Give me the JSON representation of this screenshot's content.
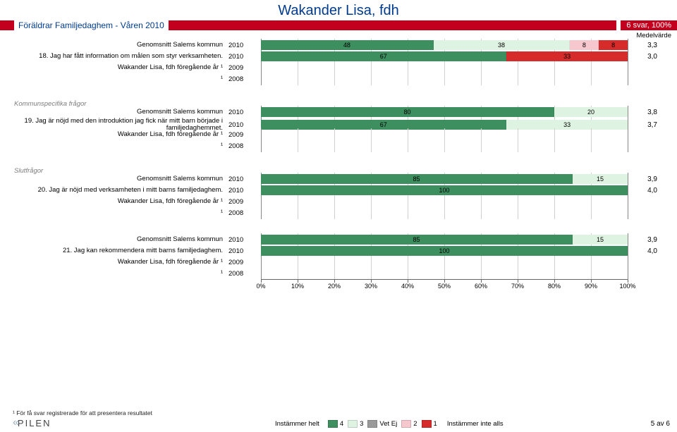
{
  "title": "Wakander Lisa, fdh",
  "header": {
    "left_label": "Föräldrar Familjedaghem - Våren 2010",
    "right_label": "6 svar, 100%",
    "medel_label": "Medelvärde"
  },
  "colors": {
    "c4": "#3e8f5f",
    "c3": "#dff3e2",
    "cVetEj": "#9a9a9a",
    "c2": "#f6c7cd",
    "c1": "#d52b2b",
    "grid": "#d0d0d0",
    "title_color": "#003b8e",
    "band_color": "#c3001e"
  },
  "groups": [
    {
      "section": null,
      "question": "18. Jag har fått information om målen som styr verksamheten.",
      "rows": [
        {
          "label": "Genomsnitt Salems kommun",
          "year": "2010",
          "segments": [
            {
              "v": 48,
              "k": "c4"
            },
            {
              "v": 38,
              "k": "c3"
            },
            {
              "v": 8,
              "k": "c2",
              "hide": false
            },
            {
              "v": 8,
              "k": "c1",
              "hide": false
            }
          ],
          "mv": "3,3"
        },
        {
          "label": "__Q__",
          "year": "2010",
          "segments": [
            {
              "v": 67,
              "k": "c4"
            },
            {
              "v": 33,
              "k": "c1"
            }
          ],
          "mv": "3,0"
        },
        {
          "label": "Wakander Lisa, fdh föregående år ¹",
          "year": "2009",
          "empty": true
        },
        {
          "label": "¹",
          "year": "2008",
          "empty": true
        }
      ]
    },
    {
      "section": "Kommunspecifika frågor",
      "question": "19. Jag är nöjd med den introduktion jag fick när mitt barn började i familjedaghemmet.",
      "rows": [
        {
          "label": "Genomsnitt Salems kommun",
          "year": "2010",
          "segments": [
            {
              "v": 80,
              "k": "c4"
            },
            {
              "v": 20,
              "k": "c3"
            }
          ],
          "mv": "3,8"
        },
        {
          "label": "__Q__",
          "year": "2010",
          "segments": [
            {
              "v": 67,
              "k": "c4"
            },
            {
              "v": 33,
              "k": "c3"
            }
          ],
          "mv": "3,7"
        },
        {
          "label": "Wakander Lisa, fdh föregående år ¹",
          "year": "2009",
          "empty": true
        },
        {
          "label": "¹",
          "year": "2008",
          "empty": true
        }
      ]
    },
    {
      "section": "Slutfrågor",
      "question": "20. Jag är nöjd med verksamheten i mitt barns familjedaghem.",
      "rows": [
        {
          "label": "Genomsnitt Salems kommun",
          "year": "2010",
          "segments": [
            {
              "v": 85,
              "k": "c4"
            },
            {
              "v": 15,
              "k": "c3"
            }
          ],
          "mv": "3,9"
        },
        {
          "label": "__Q__",
          "year": "2010",
          "segments": [
            {
              "v": 100,
              "k": "c4"
            }
          ],
          "mv": "4,0"
        },
        {
          "label": "Wakander Lisa, fdh föregående år ¹",
          "year": "2009",
          "empty": true
        },
        {
          "label": "¹",
          "year": "2008",
          "empty": true
        }
      ]
    },
    {
      "section": null,
      "question": "21. Jag kan rekommendera mitt barns familjedaghem.",
      "rows": [
        {
          "label": "Genomsnitt Salems kommun",
          "year": "2010",
          "segments": [
            {
              "v": 85,
              "k": "c4"
            },
            {
              "v": 15,
              "k": "c3"
            }
          ],
          "mv": "3,9"
        },
        {
          "label": "__Q__",
          "year": "2010",
          "segments": [
            {
              "v": 100,
              "k": "c4"
            }
          ],
          "mv": "4,0"
        },
        {
          "label": "Wakander Lisa, fdh föregående år ¹",
          "year": "2009",
          "empty": true
        },
        {
          "label": "¹",
          "year": "2008",
          "empty": true
        }
      ]
    }
  ],
  "axis_ticks": [
    "0%",
    "10%",
    "20%",
    "30%",
    "40%",
    "50%",
    "60%",
    "70%",
    "80%",
    "90%",
    "100%"
  ],
  "footnote": "¹ För få svar registrerade för att presentera resultatet",
  "legend": {
    "left_label": "Instämmer helt",
    "right_label": "Instämmer inte alls",
    "items": [
      {
        "n": "4",
        "k": "c4"
      },
      {
        "n": "3",
        "k": "c3"
      },
      {
        "n": "Vet Ej",
        "k": "cVetEj"
      },
      {
        "n": "2",
        "k": "c2"
      },
      {
        "n": "1",
        "k": "c1"
      }
    ]
  },
  "logo_text": "PILEN",
  "page": "5 av 6"
}
